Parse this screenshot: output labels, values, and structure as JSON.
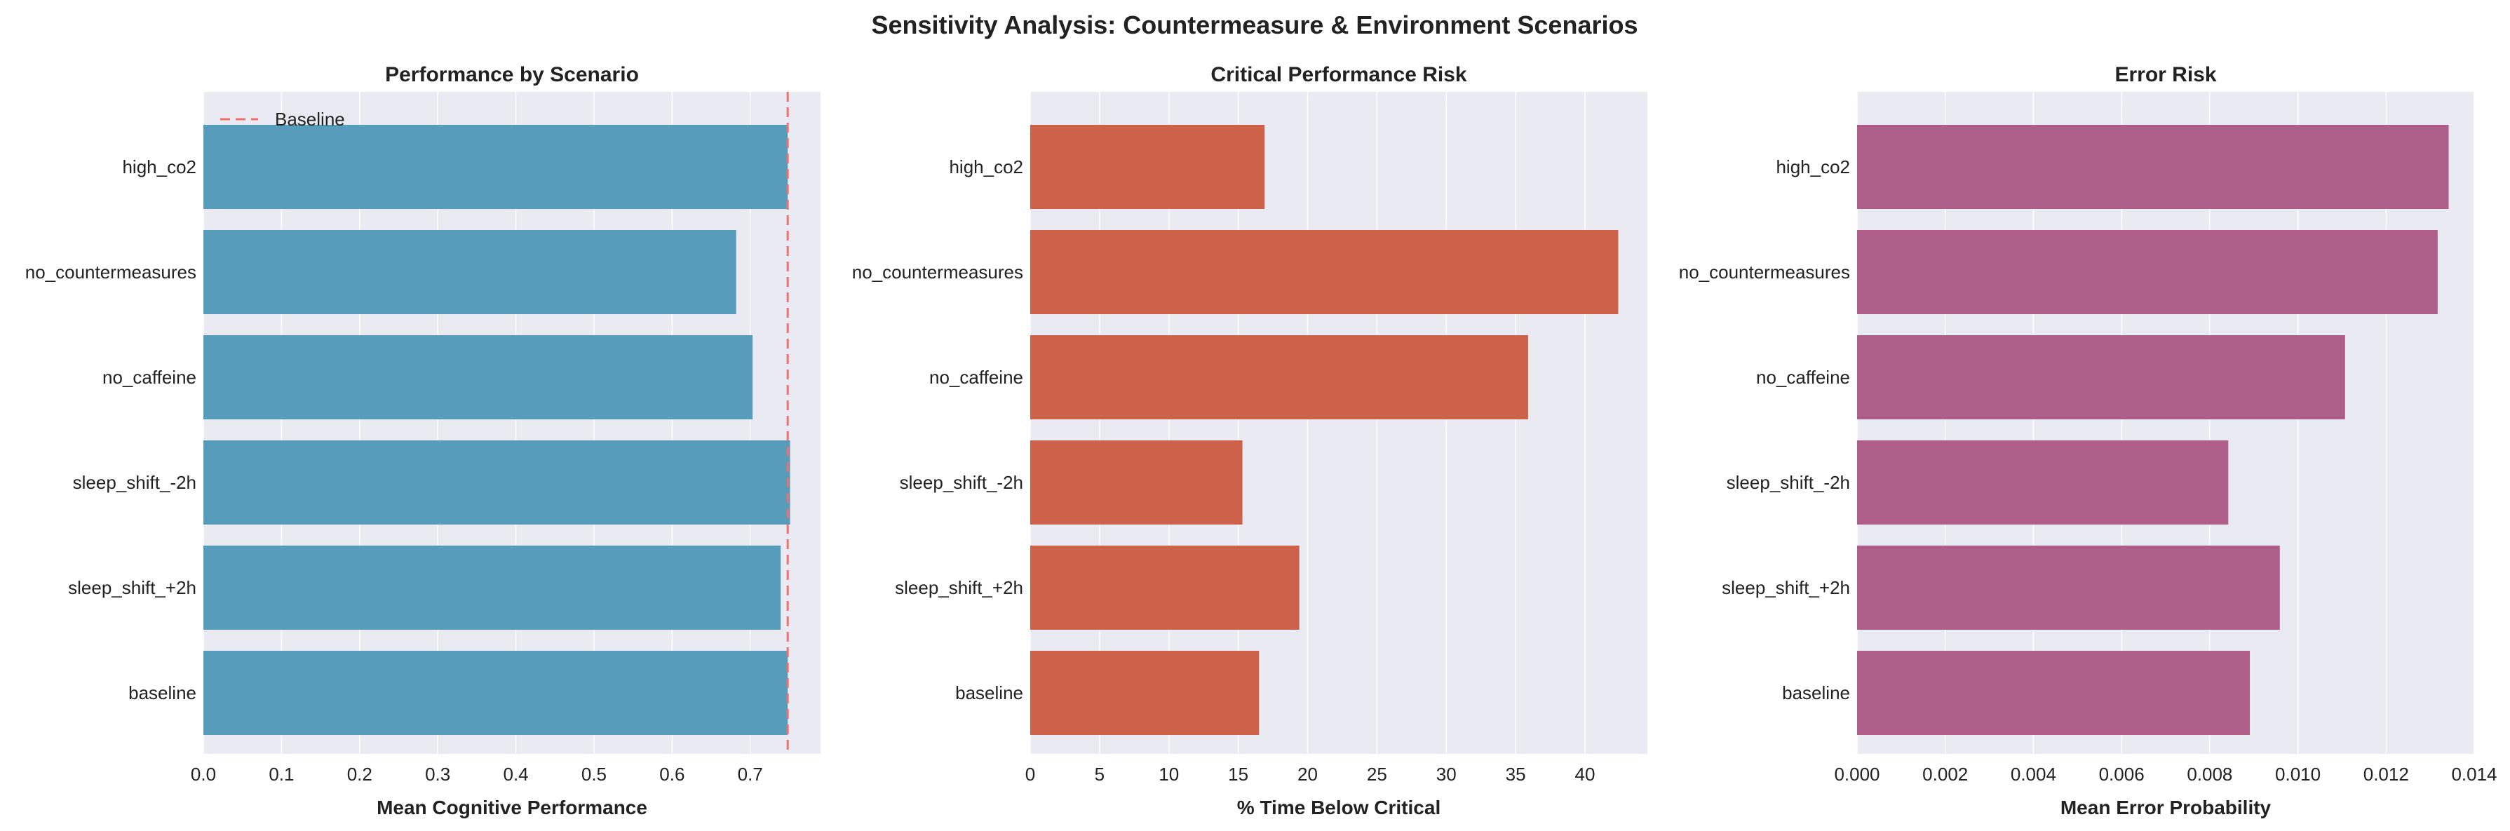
{
  "figure": {
    "title": "Sensitivity Analysis: Countermeasure & Environment Scenarios"
  },
  "chart_data": [
    {
      "type": "bar",
      "orientation": "horizontal",
      "title": "Performance by Scenario",
      "xlabel": "Mean Cognitive Performance",
      "ylabel": "",
      "categories": [
        "high_co2",
        "no_countermeasures",
        "no_caffeine",
        "sleep_shift_-2h",
        "sleep_shift_+2h",
        "baseline"
      ],
      "values": [
        0.748,
        0.682,
        0.703,
        0.751,
        0.739,
        0.748
      ],
      "xlim": [
        0,
        0.79
      ],
      "xticks": [
        "0.0",
        "0.1",
        "0.2",
        "0.3",
        "0.4",
        "0.5",
        "0.6",
        "0.7"
      ],
      "xtick_values": [
        0,
        0.1,
        0.2,
        0.3,
        0.4,
        0.5,
        0.6,
        0.7
      ],
      "bar_color": "#579dbb",
      "reference_line": {
        "x": 0.748,
        "style": "dashed",
        "color": "#f07070",
        "label": "Baseline"
      },
      "legend": {
        "position": "top-left",
        "entries": [
          "Baseline"
        ]
      },
      "grid": true
    },
    {
      "type": "bar",
      "orientation": "horizontal",
      "title": "Critical Performance Risk",
      "xlabel": "% Time Below Critical",
      "ylabel": "",
      "categories": [
        "high_co2",
        "no_countermeasures",
        "no_caffeine",
        "sleep_shift_-2h",
        "sleep_shift_+2h",
        "baseline"
      ],
      "values": [
        16.9,
        42.4,
        35.9,
        15.3,
        19.4,
        16.5
      ],
      "xlim": [
        0,
        44.5
      ],
      "xticks": [
        "0",
        "5",
        "10",
        "15",
        "20",
        "25",
        "30",
        "35",
        "40"
      ],
      "xtick_values": [
        0,
        5,
        10,
        15,
        20,
        25,
        30,
        35,
        40
      ],
      "bar_color": "#cd614a",
      "grid": true
    },
    {
      "type": "bar",
      "orientation": "horizontal",
      "title": "Error Risk",
      "xlabel": "Mean Error Probability",
      "ylabel": "",
      "categories": [
        "high_co2",
        "no_countermeasures",
        "no_caffeine",
        "sleep_shift_-2h",
        "sleep_shift_+2h",
        "baseline"
      ],
      "values": [
        0.01342,
        0.01317,
        0.01107,
        0.00842,
        0.00959,
        0.00891
      ],
      "xlim": [
        0,
        0.014
      ],
      "xticks": [
        "0.000",
        "0.002",
        "0.004",
        "0.006",
        "0.008",
        "0.010",
        "0.012",
        "0.014"
      ],
      "xtick_values": [
        0,
        0.002,
        0.004,
        0.006,
        0.008,
        0.01,
        0.012,
        0.014
      ],
      "bar_color": "#ad5f8a",
      "grid": true
    }
  ]
}
